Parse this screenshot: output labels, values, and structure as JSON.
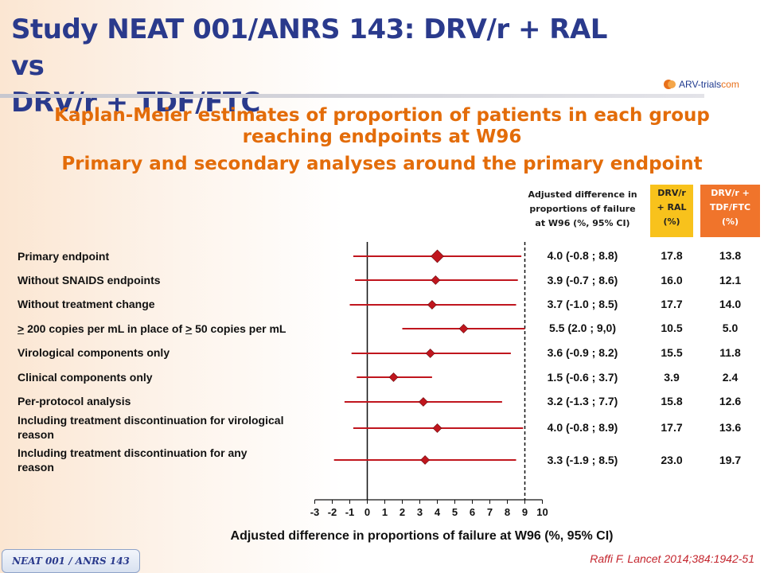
{
  "header": {
    "title_line1": "Study NEAT 001/ANRS 143: DRV/r + RAL vs",
    "title_line2": "DRV/r + TDF/FTC",
    "logo_text": "ARV-trials",
    "logo_suffix": "com"
  },
  "subtitle": {
    "line1": "Kaplan-Meier estimates of proportion of patients in each group",
    "line2": "reaching endpoints at W96",
    "line3": "Primary and secondary analyses around the primary endpoint"
  },
  "columns": {
    "adj_line1": "Adjusted difference in",
    "adj_line2": "proportions of failure",
    "adj_line3": "at W96 (%, 95% CI)",
    "ral_line1": "DRV/r",
    "ral_line2": "+ RAL",
    "ral_line3": "(%)",
    "tdf_line1": "DRV/r +",
    "tdf_line2": "TDF/FTC",
    "tdf_line3": "(%)",
    "ral_color": "#f8c21c",
    "tdf_color": "#f0742b"
  },
  "rows": [
    {
      "label_a": "Primary endpoint",
      "label_b": "",
      "diff": "4.0 (-0.8 ; 8.8)",
      "ral": "17.8",
      "tdf": "13.8"
    },
    {
      "label_a": "Without SNAIDS endpoints",
      "label_b": "",
      "diff": "3.9 (-0.7 ; 8.6)",
      "ral": "16.0",
      "tdf": "12.1"
    },
    {
      "label_a": "Without treatment change",
      "label_b": "",
      "diff": "3.7 (-1.0 ; 8.5)",
      "ral": "17.7",
      "tdf": "14.0"
    },
    {
      "label_a": "",
      "label_b": "",
      "diff": "5.5 (2.0 ; 9,0)",
      "ral": "10.5",
      "tdf": "5.0",
      "label_parts": [
        ">",
        " 200 copies per mL in place of ",
        ">",
        " 50 copies per mL"
      ]
    },
    {
      "label_a": "Virological components only",
      "label_b": "",
      "diff": "3.6 (-0.9 ; 8.2)",
      "ral": "15.5",
      "tdf": "11.8"
    },
    {
      "label_a": "Clinical components only",
      "label_b": "",
      "diff": "1.5 (-0.6 ; 3.7)",
      "ral": "3.9",
      "tdf": "2.4"
    },
    {
      "label_a": "Per-protocol analysis",
      "label_b": "",
      "diff": "3.2 (-1.3 ; 7.7)",
      "ral": "15.8",
      "tdf": "12.6"
    },
    {
      "label_a": "Including treatment discontinuation for virological",
      "label_b": "reason",
      "diff": "4.0 (-0.8 ; 8.9)",
      "ral": "17.7",
      "tdf": "13.6"
    },
    {
      "label_a": "Including treatment discontinuation for any",
      "label_b": "reason",
      "diff": "3.3 (-1.9 ; 8.5)",
      "ral": "23.0",
      "tdf": "19.7"
    }
  ],
  "chart_data": {
    "type": "forest",
    "xlabel": "Adjusted difference in proportions of failure at W96 (%, 95% CI)",
    "xlim": [
      -3,
      10
    ],
    "xticks": [
      -3,
      -2,
      -1,
      0,
      1,
      2,
      3,
      4,
      5,
      6,
      7,
      8,
      9,
      10
    ],
    "reference_line": 0,
    "margin_line": 9,
    "marker_color": "#c0161e",
    "estimates": [
      {
        "point": 4.0,
        "low": -0.8,
        "high": 8.8
      },
      {
        "point": 3.9,
        "low": -0.7,
        "high": 8.6
      },
      {
        "point": 3.7,
        "low": -1.0,
        "high": 8.5
      },
      {
        "point": 5.5,
        "low": 2.0,
        "high": 9.0
      },
      {
        "point": 3.6,
        "low": -0.9,
        "high": 8.2
      },
      {
        "point": 1.5,
        "low": -0.6,
        "high": 3.7
      },
      {
        "point": 3.2,
        "low": -1.3,
        "high": 7.7
      },
      {
        "point": 4.0,
        "low": -0.8,
        "high": 8.9
      },
      {
        "point": 3.3,
        "low": -1.9,
        "high": 8.5
      }
    ]
  },
  "footer": {
    "study_tag": "NEAT 001 / ANRS 143",
    "citation": "Raffi F. Lancet 2014;384:1942-51"
  }
}
